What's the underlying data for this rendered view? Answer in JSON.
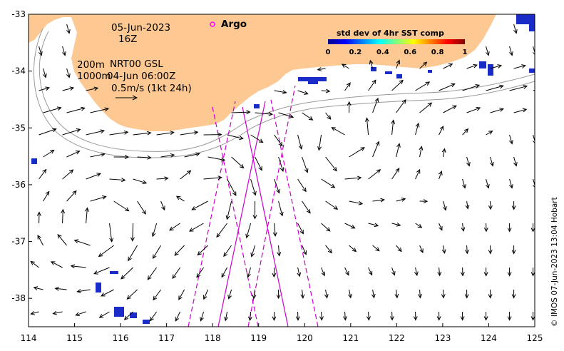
{
  "map": {
    "lon_range": [
      114,
      125
    ],
    "lat_range": [
      -38.5,
      -33
    ],
    "x_ticks": [
      "114",
      "115",
      "116",
      "117",
      "118",
      "119",
      "120",
      "121",
      "122",
      "123",
      "124",
      "125"
    ],
    "y_ticks": [
      "-33",
      "-34",
      "-35",
      "-36",
      "-37",
      "-38"
    ],
    "land_color": "#fdc891",
    "arrow_color": "#000000",
    "track_color": "#cc00cc",
    "isobath_color": "#9a9a9a"
  },
  "annotations": {
    "date": "05-Jun-2023",
    "hour": "16Z",
    "legend_argo": "Argo",
    "isobaths": "200m",
    "isobaths2": "1000m",
    "product": "NRT00 GSL",
    "product_time": "04-Jun 06:00Z",
    "scale_label": "0.5m/s (1kt 24h)"
  },
  "colorbar": {
    "title": "std dev of 4hr SST comp",
    "ticks": [
      "0",
      "0.2",
      "0.4",
      "0.6",
      "0.8",
      "1"
    ]
  },
  "credit": "© IMOS 07-Jun-2023 13:04 Hobart"
}
